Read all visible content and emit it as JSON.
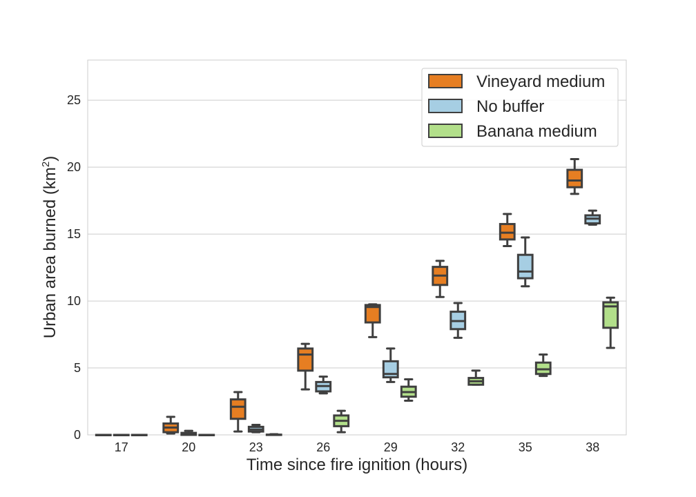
{
  "chart_data": {
    "type": "box",
    "xlabel": "Time since fire ignition (hours)",
    "ylabel_main": "Urban area burned (km",
    "ylabel_sup": "2",
    "ylabel_close": ")",
    "categories": [
      "17",
      "20",
      "23",
      "26",
      "29",
      "32",
      "35",
      "38"
    ],
    "ylim": [
      0,
      28
    ],
    "yticks": [
      0,
      5,
      10,
      15,
      20,
      25
    ],
    "grid": "horizontal",
    "legend_position": "top-right",
    "series": [
      {
        "name": "Vineyard medium",
        "color": "#e67e22",
        "boxes": [
          {
            "whislo": 0,
            "q1": 0,
            "med": 0,
            "q3": 0,
            "whishi": 0
          },
          {
            "whislo": 0.1,
            "q1": 0.2,
            "med": 0.55,
            "q3": 0.85,
            "whishi": 1.35
          },
          {
            "whislo": 0.25,
            "q1": 1.2,
            "med": 2.1,
            "q3": 2.65,
            "whishi": 3.2
          },
          {
            "whislo": 3.4,
            "q1": 4.8,
            "med": 6.0,
            "q3": 6.45,
            "whishi": 6.8
          },
          {
            "whislo": 7.3,
            "q1": 8.4,
            "med": 9.55,
            "q3": 9.7,
            "whishi": 9.75
          },
          {
            "whislo": 10.3,
            "q1": 11.2,
            "med": 11.9,
            "q3": 12.55,
            "whishi": 13.0
          },
          {
            "whislo": 14.1,
            "q1": 14.6,
            "med": 15.1,
            "q3": 15.75,
            "whishi": 16.5
          },
          {
            "whislo": 18.0,
            "q1": 18.5,
            "med": 19.0,
            "q3": 19.8,
            "whishi": 20.6
          }
        ]
      },
      {
        "name": "No buffer",
        "color": "#a6cee3",
        "boxes": [
          {
            "whislo": 0,
            "q1": 0,
            "med": 0,
            "q3": 0,
            "whishi": 0
          },
          {
            "whislo": 0,
            "q1": 0,
            "med": 0.05,
            "q3": 0.15,
            "whishi": 0.3
          },
          {
            "whislo": 0.2,
            "q1": 0.25,
            "med": 0.4,
            "q3": 0.6,
            "whishi": 0.75
          },
          {
            "whislo": 3.1,
            "q1": 3.25,
            "med": 3.65,
            "q3": 3.95,
            "whishi": 4.35
          },
          {
            "whislo": 3.95,
            "q1": 4.3,
            "med": 4.55,
            "q3": 5.5,
            "whishi": 6.45
          },
          {
            "whislo": 7.25,
            "q1": 7.9,
            "med": 8.5,
            "q3": 9.2,
            "whishi": 9.85
          },
          {
            "whislo": 11.1,
            "q1": 11.7,
            "med": 12.2,
            "q3": 13.45,
            "whishi": 14.75
          },
          {
            "whislo": 15.7,
            "q1": 15.8,
            "med": 16.15,
            "q3": 16.4,
            "whishi": 16.75
          }
        ]
      },
      {
        "name": "Banana medium",
        "color": "#b2df8a",
        "boxes": [
          {
            "whislo": 0,
            "q1": 0,
            "med": 0,
            "q3": 0,
            "whishi": 0
          },
          {
            "whislo": 0,
            "q1": 0,
            "med": 0,
            "q3": 0,
            "whishi": 0
          },
          {
            "whislo": 0,
            "q1": 0,
            "med": 0,
            "q3": 0.02,
            "whishi": 0.05
          },
          {
            "whislo": 0.2,
            "q1": 0.65,
            "med": 1.05,
            "q3": 1.45,
            "whishi": 1.8
          },
          {
            "whislo": 2.55,
            "q1": 2.85,
            "med": 3.2,
            "q3": 3.6,
            "whishi": 4.15
          },
          {
            "whislo": 3.75,
            "q1": 3.75,
            "med": 4.0,
            "q3": 4.25,
            "whishi": 4.8
          },
          {
            "whislo": 4.4,
            "q1": 4.55,
            "med": 4.9,
            "q3": 5.4,
            "whishi": 6.0
          },
          {
            "whislo": 6.5,
            "q1": 8.0,
            "med": 9.6,
            "q3": 9.9,
            "whishi": 10.25
          }
        ]
      }
    ]
  }
}
